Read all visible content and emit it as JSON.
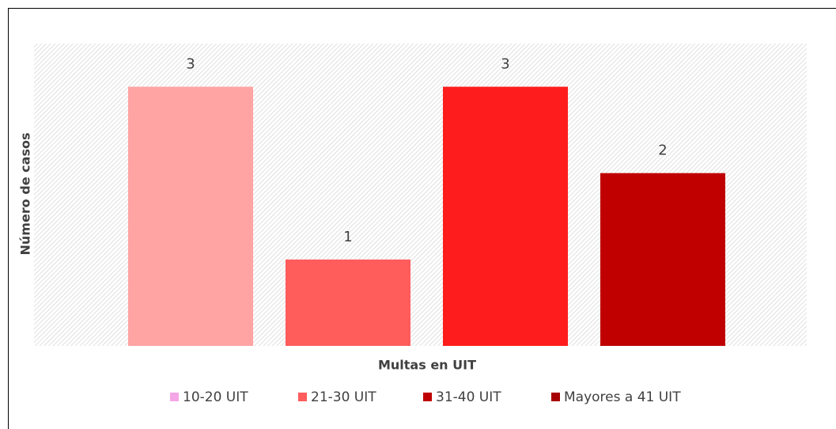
{
  "chart_data": {
    "type": "bar",
    "categories": [
      null,
      null,
      null,
      null
    ],
    "values": [
      3,
      1,
      3,
      2
    ],
    "colors": [
      "#ffa3a3",
      "#ff5c5c",
      "#ff1c1c",
      "#c00000"
    ],
    "ylim": [
      0,
      3.5
    ],
    "x_label": "Multas en UIT",
    "y_label": "Número de casos",
    "legend": [
      {
        "name": "10-20 UIT",
        "color": "#f4a6e6"
      },
      {
        "name": "21-30 UIT",
        "color": "#ff5c5c"
      },
      {
        "name": "31-40 UIT",
        "color": "#c00000"
      },
      {
        "name": "Mayores a 41 UIT",
        "color": "#a80000"
      }
    ],
    "legend_position": "bottom"
  }
}
